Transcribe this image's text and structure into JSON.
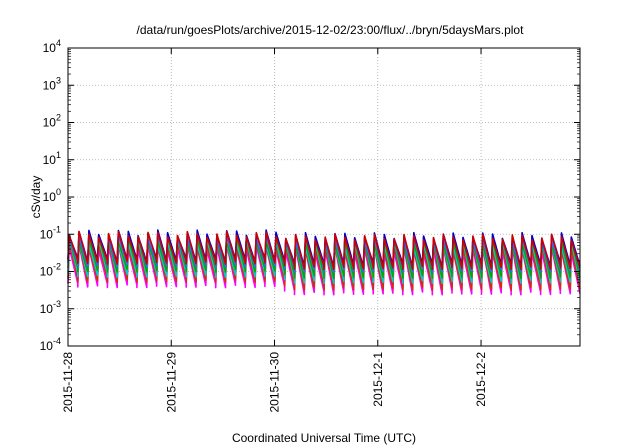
{
  "chart_data": {
    "type": "line",
    "title": "/data/run/goesPlots/archive/2015-12-02/23:00/flux/../bryn/5daysMars.plot",
    "xlabel": "Coordinated Universal Time (UTC)",
    "ylabel": "cSv/day",
    "x_range": [
      "2015-11-28T00:00",
      "2015-12-02T23:00"
    ],
    "x_ticks": [
      "2015-11-28",
      "2015-11-29",
      "2015-11-30",
      "2015-12-1",
      "2015-12-2"
    ],
    "y_scale": "log",
    "ylim": [
      0.0001,
      10000
    ],
    "y_ticks": [
      {
        "base": "10",
        "exp": "-4"
      },
      {
        "base": "10",
        "exp": "-3"
      },
      {
        "base": "10",
        "exp": "-2"
      },
      {
        "base": "10",
        "exp": "-1"
      },
      {
        "base": "10",
        "exp": "0"
      },
      {
        "base": "10",
        "exp": "1"
      },
      {
        "base": "10",
        "exp": "2"
      },
      {
        "base": "10",
        "exp": "3"
      },
      {
        "base": "10",
        "exp": "4"
      }
    ],
    "grid": true,
    "legend": "none",
    "pattern": {
      "description_periods_per_day": 10.5,
      "first_half_peak_range": [
        0.07,
        0.12
      ],
      "second_half_peak_range": [
        0.05,
        0.1
      ]
    },
    "series": [
      {
        "color": "#ff00ff",
        "peak": 0.045,
        "trough": 0.0042,
        "trough_late": 0.0027
      },
      {
        "color": "#cc3300",
        "peak": 0.055,
        "trough": 0.0058,
        "trough_late": 0.0036
      },
      {
        "color": "#00cccc",
        "peak": 0.065,
        "trough": 0.008,
        "trough_late": 0.0055
      },
      {
        "color": "#00aa00",
        "peak": 0.075,
        "trough": 0.011,
        "trough_late": 0.0075
      },
      {
        "color": "#3366ff",
        "peak": 0.09,
        "trough": 0.015,
        "trough_late": 0.011
      },
      {
        "color": "#0000cc",
        "peak": 0.11,
        "trough": 0.02,
        "trough_late": 0.015
      },
      {
        "color": "#cc0000",
        "peak": 0.1,
        "trough": 0.018,
        "trough_late": 0.013
      }
    ]
  }
}
